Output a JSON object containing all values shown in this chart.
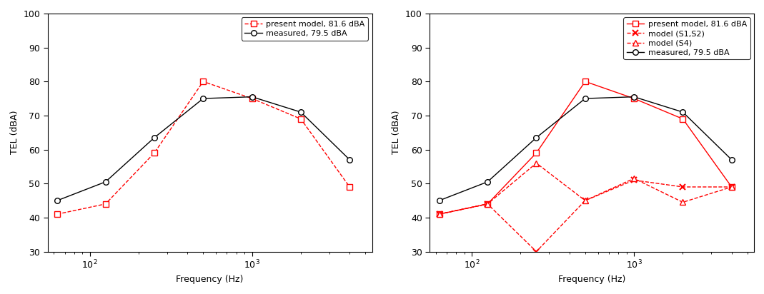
{
  "freqs": [
    63,
    125,
    250,
    500,
    1000,
    2000,
    4000
  ],
  "present_model": [
    41,
    44,
    59,
    80,
    75,
    69,
    49
  ],
  "measured": [
    45,
    50.5,
    63.5,
    75,
    75.5,
    71,
    57
  ],
  "s1s2_model": [
    41,
    44,
    30,
    45,
    51,
    49,
    49
  ],
  "s4_model": [
    41,
    44,
    56,
    45,
    51.5,
    44.5,
    49
  ],
  "legend1_label1": "present model, 81.6 dBA",
  "legend1_label2": "measured, 79.5 dBA",
  "legend2_label1": "present model, 81.6 dBA",
  "legend2_label2": "model (S1,S2)",
  "legend2_label3": "model (S4)",
  "legend2_label4": "measured, 79.5 dBA",
  "xlabel": "Frequency (Hz)",
  "ylabel": "TEL (dBA)",
  "ylim": [
    30,
    100
  ],
  "xlim_low": 55,
  "xlim_high": 5500,
  "red_color": "#FF0000",
  "black_color": "#000000",
  "yticks": [
    30,
    40,
    50,
    60,
    70,
    80,
    90,
    100
  ],
  "xticks": [
    100,
    1000
  ],
  "xtick_labels": [
    "$10^2$",
    "$10^3$"
  ]
}
